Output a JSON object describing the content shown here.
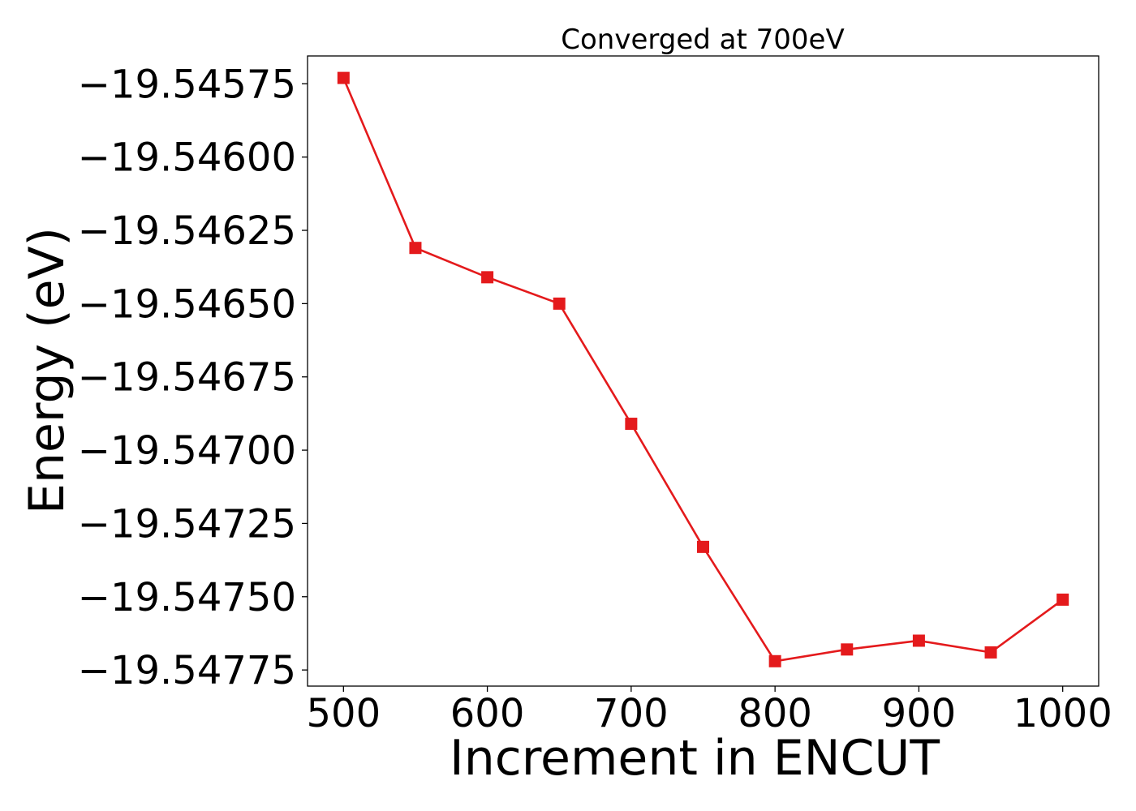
{
  "chart_data": {
    "type": "line",
    "title": "Converged at 700eV",
    "xlabel": "Increment in ENCUT",
    "ylabel": "Energy (eV)",
    "xlim": [
      475,
      1025
    ],
    "ylim": [
      -19.547805,
      -19.545655
    ],
    "x_ticks": [
      500,
      600,
      700,
      800,
      900,
      1000
    ],
    "x_tick_labels": [
      "500",
      "600",
      "700",
      "800",
      "900",
      "1000"
    ],
    "y_ticks": [
      -19.54575,
      -19.546,
      -19.54625,
      -19.5465,
      -19.54675,
      -19.547,
      -19.54725,
      -19.5475,
      -19.54775
    ],
    "y_tick_labels": [
      "−19.54575",
      "−19.54600",
      "−19.54625",
      "−19.54650",
      "−19.54675",
      "−19.54700",
      "−19.54725",
      "−19.54750",
      "−19.54775"
    ],
    "grid": false,
    "marker": "square",
    "color": "#e41a1c",
    "x": [
      500,
      550,
      600,
      650,
      700,
      750,
      800,
      850,
      900,
      950,
      1000
    ],
    "values": [
      -19.54573,
      -19.54631,
      -19.54641,
      -19.5465,
      -19.54691,
      -19.54733,
      -19.54772,
      -19.54768,
      -19.54765,
      -19.54769,
      -19.54751
    ]
  }
}
